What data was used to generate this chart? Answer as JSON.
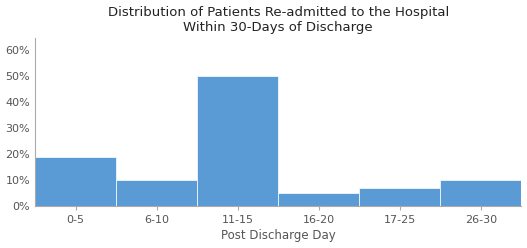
{
  "title_line1": "Distribution of Patients Re-admitted to the Hospital",
  "title_line2": "Within 30-Days of Discharge",
  "xlabel": "Post Discharge Day",
  "categories": [
    "0-5",
    "6-10",
    "11-15",
    "16-20",
    "17-25",
    "26-30"
  ],
  "values": [
    0.19,
    0.1,
    0.5,
    0.05,
    0.07,
    0.1
  ],
  "bar_color": "#5b9bd5",
  "ylim": [
    0,
    0.65
  ],
  "yticks": [
    0.0,
    0.1,
    0.2,
    0.3,
    0.4,
    0.5,
    0.6
  ],
  "background_color": "#ffffff",
  "title_fontsize": 9.5,
  "axis_label_fontsize": 8.5,
  "tick_fontsize": 8,
  "spine_color": "#aaaaaa"
}
